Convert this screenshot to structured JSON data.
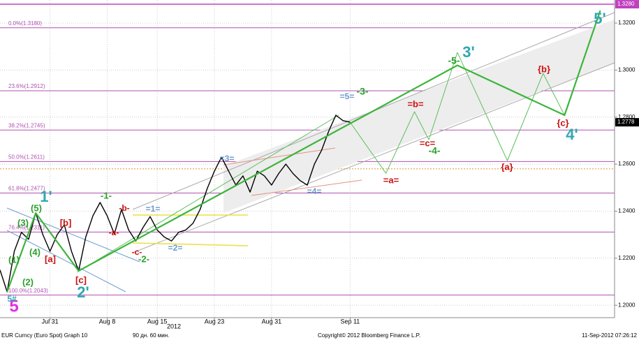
{
  "chart_data": {
    "type": "line",
    "footer": {
      "left": "EUR Curncy (Euro Spot) Graph 10",
      "period": "90 дн. 60 мин.",
      "copyright": "Copyright© 2012 Bloomberg Finance L.P.",
      "timestamp": "11-Sep-2012 07:26:12"
    },
    "xlim": [
      "2012-07-24",
      "2012-10-18"
    ],
    "xticks": [
      {
        "value": "2012-07-31",
        "label": "Jul 31"
      },
      {
        "value": "2012-08-08",
        "label": "Aug 8"
      },
      {
        "value": "2012-08-15",
        "label": "Aug 15"
      },
      {
        "value": "2012-08-23",
        "label": "Aug 23"
      },
      {
        "value": "2012-08-31",
        "label": "Aug 31"
      },
      {
        "value": "2012-09-11",
        "label": "Sep 11"
      }
    ],
    "year_label": "2012",
    "ylim": [
      1.1947,
      1.3298
    ],
    "yticks": [
      {
        "value": 1.2,
        "label": "1.2000"
      },
      {
        "value": 1.22,
        "label": "1.2200"
      },
      {
        "value": 1.24,
        "label": "1.2400"
      },
      {
        "value": 1.26,
        "label": "1.2600"
      },
      {
        "value": 1.28,
        "label": "1.2800"
      },
      {
        "value": 1.3,
        "label": "1.3000"
      },
      {
        "value": 1.32,
        "label": "1.3200"
      }
    ],
    "grid": true,
    "upper_level": {
      "value": 1.328,
      "label": "1.3280",
      "color": "#c040c0"
    },
    "last_price": {
      "value": 1.2778,
      "label": "1.2778"
    },
    "dotted_level": {
      "value": 1.258,
      "color": "#e0a040"
    },
    "fib_levels": [
      {
        "value": 1.318,
        "label": "0.0%(1.3180)"
      },
      {
        "value": 1.2912,
        "label": "23.6%(1.2912)"
      },
      {
        "value": 1.2745,
        "label": "38.2%(1.2745)"
      },
      {
        "value": 1.2611,
        "label": "50.0%(1.2611)"
      },
      {
        "value": 1.2477,
        "label": "61.8%(1.2477)"
      },
      {
        "value": 1.2311,
        "label": "76.4%(1.2311)"
      },
      {
        "value": 1.2043,
        "label": "100.0%(1.2043)"
      }
    ],
    "fib_color": "#b050b0",
    "series": [
      {
        "color": "#000000",
        "width": 1.4,
        "x": [
          "2012-07-24",
          "2012-07-25",
          "2012-07-26",
          "2012-07-27",
          "2012-07-28",
          "2012-07-29",
          "2012-07-30",
          "2012-07-31",
          "2012-08-01",
          "2012-08-02",
          "2012-08-03",
          "2012-08-04",
          "2012-08-05",
          "2012-08-06",
          "2012-08-07",
          "2012-08-08",
          "2012-08-09",
          "2012-08-10",
          "2012-08-11",
          "2012-08-12",
          "2012-08-13",
          "2012-08-14",
          "2012-08-15",
          "2012-08-16",
          "2012-08-17",
          "2012-08-18",
          "2012-08-19",
          "2012-08-20",
          "2012-08-21",
          "2012-08-22",
          "2012-08-23",
          "2012-08-24",
          "2012-08-25",
          "2012-08-26",
          "2012-08-27",
          "2012-08-28",
          "2012-08-29",
          "2012-08-30",
          "2012-08-31",
          "2012-09-01",
          "2012-09-02",
          "2012-09-03",
          "2012-09-04",
          "2012-09-05",
          "2012-09-06",
          "2012-09-07",
          "2012-09-08",
          "2012-09-09",
          "2012-09-10",
          "2012-09-11"
        ],
        "values": [
          1.215,
          1.2057,
          1.223,
          1.231,
          1.228,
          1.2392,
          1.23,
          1.2229,
          1.23,
          1.2342,
          1.223,
          1.2146,
          1.229,
          1.238,
          1.2437,
          1.238,
          1.2303,
          1.2407,
          1.232,
          1.2273,
          1.233,
          1.2377,
          1.232,
          1.229,
          1.2273,
          1.231,
          1.232,
          1.2348,
          1.2407,
          1.2496,
          1.257,
          1.263,
          1.257,
          1.2511,
          1.255,
          1.2481,
          1.257,
          1.255,
          1.2511,
          1.256,
          1.26,
          1.256,
          1.253,
          1.2511,
          1.26,
          1.2659,
          1.274,
          1.2808,
          1.2785,
          1.2778
        ]
      },
      {
        "color": "#5cc05c",
        "width": 1,
        "x": [
          "2012-09-11",
          "2012-09-16",
          "2012-09-20",
          "2012-09-22",
          "2012-09-26",
          "2012-10-03",
          "2012-10-08",
          "2012-10-11",
          "2012-10-16"
        ],
        "values": [
          1.2778,
          1.2561,
          1.2823,
          1.2704,
          1.3075,
          1.2615,
          1.2986,
          1.2808,
          1.3253
        ]
      },
      {
        "color": "#3cb43c",
        "width": 2.2,
        "x": [
          "2012-07-25",
          "2012-07-29",
          "2012-08-04",
          "2012-09-26",
          "2012-10-11",
          "2012-10-16"
        ],
        "values": [
          1.2057,
          1.2392,
          1.2146,
          1.302,
          1.2808,
          1.3253
        ]
      }
    ],
    "annotations": [
      "5",
      "5#",
      "(1)",
      "(2)",
      "(3)",
      "(4)",
      "(5)",
      "1'",
      "[a]",
      "[b]",
      "[c]",
      "2'",
      "-1-",
      "-a-",
      "-b-",
      "-c-",
      "-2-",
      "=1=",
      "=2=",
      "=3=",
      "=4=",
      "=5=",
      "-3-",
      "=a=",
      "=b=",
      "=c=",
      "-4-",
      "-5-",
      "3'",
      "{a}",
      "{b}",
      "{c}",
      "4'",
      "5'"
    ]
  }
}
